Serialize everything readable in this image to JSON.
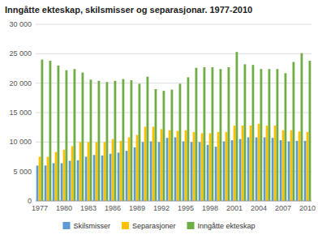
{
  "chart_data": {
    "type": "bar",
    "title": "Inngåtte ekteskap, skilsmisser og separasjonar. 1977-2010",
    "categories": [
      "1977",
      null,
      null,
      "1980",
      null,
      null,
      "1983",
      null,
      null,
      "1986",
      null,
      null,
      "1989",
      null,
      null,
      "1992",
      null,
      null,
      "1995",
      null,
      null,
      "1998",
      null,
      null,
      "2001",
      null,
      null,
      "2004",
      null,
      null,
      "2007",
      null,
      null,
      "2010"
    ],
    "series": [
      {
        "name": "Skilsmisser",
        "color": "#5b9bd5",
        "values": [
          6000,
          6000,
          6400,
          6400,
          6800,
          6900,
          7500,
          7800,
          7700,
          8000,
          8200,
          8500,
          9100,
          10000,
          10100,
          10000,
          10700,
          10800,
          10100,
          10000,
          10000,
          9500,
          9200,
          10100,
          10300,
          10500,
          10800,
          10800,
          10800,
          10700,
          10300,
          10100,
          10200,
          10200
        ]
      },
      {
        "name": "Separasjoner",
        "color": "#ffc000",
        "values": [
          7500,
          7500,
          8300,
          8700,
          9300,
          10000,
          10000,
          10000,
          10000,
          10500,
          10200,
          10800,
          11200,
          12600,
          12600,
          12200,
          12000,
          11900,
          12000,
          11700,
          11500,
          11500,
          11700,
          11700,
          12800,
          12800,
          12800,
          13100,
          12800,
          12800,
          12000,
          12000,
          11800,
          11700
        ]
      },
      {
        "name": "Inngåtte ekteskap",
        "color": "#70ad47",
        "values": [
          24000,
          23800,
          23000,
          22200,
          22400,
          21800,
          20600,
          20400,
          20200,
          20400,
          20700,
          20500,
          19900,
          21100,
          19000,
          18700,
          18900,
          19900,
          21000,
          22600,
          22700,
          22700,
          22400,
          22700,
          25300,
          23200,
          23100,
          22400,
          22400,
          22400,
          21700,
          23600,
          25100,
          23800
        ]
      }
    ],
    "ylim": [
      0,
      30000
    ],
    "yticks": [
      0,
      {
        "value": 5000,
        "label": "5 000"
      },
      {
        "value": 10000,
        "label": "10 000"
      },
      {
        "value": 15000,
        "label": "15 000"
      },
      {
        "value": 20000,
        "label": "20 000"
      },
      {
        "value": 25000,
        "label": "25 000"
      },
      {
        "value": 30000,
        "label": "30 000"
      }
    ],
    "grid": true,
    "legend": "bottom"
  }
}
